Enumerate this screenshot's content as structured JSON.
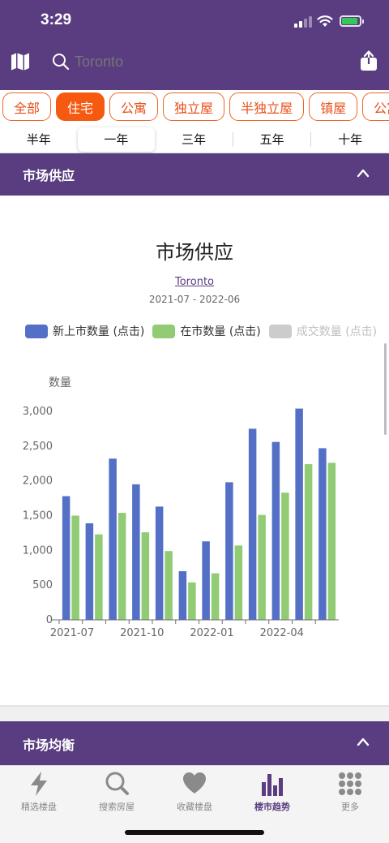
{
  "status": {
    "time": "3:29"
  },
  "search": {
    "placeholder": "Toronto"
  },
  "property_types": [
    {
      "label": "全部",
      "active": false
    },
    {
      "label": "住宅",
      "active": true
    },
    {
      "label": "公寓",
      "active": false
    },
    {
      "label": "独立屋",
      "active": false
    },
    {
      "label": "半独立屋",
      "active": false
    },
    {
      "label": "镇屋",
      "active": false
    },
    {
      "label": "公寓",
      "active": false
    }
  ],
  "periods": [
    {
      "label": "半年",
      "active": false
    },
    {
      "label": "一年",
      "active": true
    },
    {
      "label": "三年",
      "active": false
    },
    {
      "label": "五年",
      "active": false
    },
    {
      "label": "十年",
      "active": false
    }
  ],
  "section_supply": {
    "title": "市场供应"
  },
  "section_balance": {
    "title": "市场均衡"
  },
  "colors": {
    "accent": "#5a3d80",
    "orange": "#f55a10",
    "new_listings": "#5470c6",
    "active_listings": "#91cc75",
    "sold": "#cccccc"
  },
  "chart_data": {
    "type": "bar",
    "title": "市场供应",
    "city": "Toronto",
    "date_range": "2021-07 - 2022-06",
    "ylabel": "数量",
    "ylim": [
      0,
      3000
    ],
    "yticks": [
      "0",
      "500",
      "1,000",
      "1,500",
      "2,000",
      "2,500",
      "3,000"
    ],
    "xtick_labels": [
      "2021-07",
      "2021-10",
      "2022-01",
      "2022-04"
    ],
    "categories": [
      "2021-07",
      "2021-08",
      "2021-09",
      "2021-10",
      "2021-11",
      "2021-12",
      "2022-01",
      "2022-02",
      "2022-03",
      "2022-04",
      "2022-05",
      "2022-06"
    ],
    "legend": [
      {
        "name": "新上市数量 (点击)",
        "enabled": true
      },
      {
        "name": "在市数量 (点击)",
        "enabled": true
      },
      {
        "name": "成交数量 (点击)",
        "enabled": false
      }
    ],
    "series": [
      {
        "name": "新上市数量 (点击)",
        "values": [
          1780,
          1390,
          2320,
          1950,
          1630,
          700,
          1130,
          1980,
          2750,
          2560,
          3040,
          2470
        ]
      },
      {
        "name": "在市数量 (点击)",
        "values": [
          1500,
          1230,
          1540,
          1260,
          990,
          540,
          670,
          1070,
          1510,
          1830,
          2240,
          2260
        ]
      }
    ]
  },
  "tabbar": [
    {
      "label": "精选楼盘",
      "icon": "bolt-icon",
      "active": false
    },
    {
      "label": "搜索房屋",
      "icon": "search-icon",
      "active": false
    },
    {
      "label": "收藏楼盘",
      "icon": "heart-icon",
      "active": false
    },
    {
      "label": "楼市趋势",
      "icon": "bar-chart-icon",
      "active": true
    },
    {
      "label": "更多",
      "icon": "grid-dots-icon",
      "active": false
    }
  ]
}
